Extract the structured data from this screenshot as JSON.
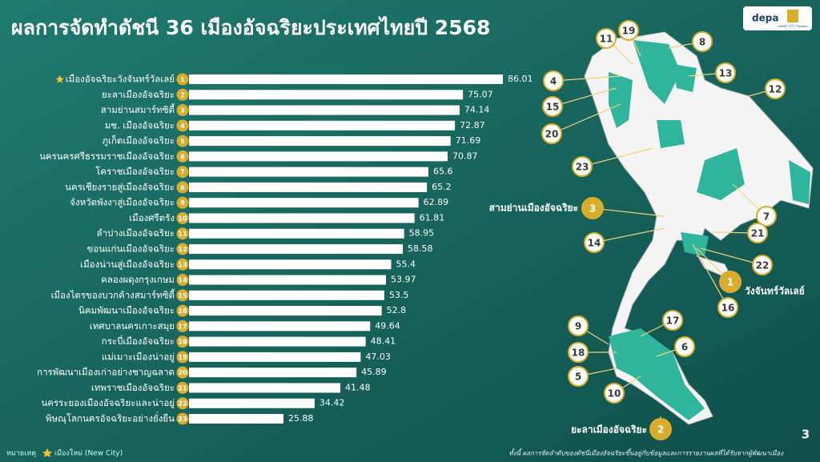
{
  "chart_data": {
    "type": "bar",
    "orientation": "horizontal",
    "title": "ผลการจัดทำดัชนี 36 เมืองอัจฉริยะประเทศไทยปี 2568",
    "categories": [
      "เมืองอัจฉริยะวังจันทร์วัลเลย์",
      "ยะลาเมืองอัจฉริยะ",
      "สามย่านสมาร์ทซิตี้",
      "มช. เมืองอัจฉริยะ",
      "ภูเก็ตเมืองอัจฉริยะ",
      "นครนครศรีธรรมราชเมืองอัจฉริยะ",
      "โคราชเมืองอัจฉริยะ",
      "นครเชียงรายสู่เมืองอัจฉริยะ",
      "จังหวัดพังงาสู่เมืองอัจฉริยะ",
      "เมืองศรีตรัง",
      "ลำปางเมืองอัจฉริยะ",
      "ขอนแก่นเมืองอัจฉริยะ",
      "เมืองน่านสู่เมืองอัจฉริยะ",
      "คลองผดุงกรุงเกษม",
      "เมืองไตรของบวกค้างสมาร์ทซิตี้",
      "นิคมพัฒนาเมืองอัจฉริยะ",
      "เทศบาลนครเกาะสมุย",
      "กระบี่เมืองอัจฉริยะ",
      "แม่เมาะเมืองน่าอยู่",
      "การพัฒนาเมืองเก่าอย่างชาญฉลาด",
      "เทพราชเมืองอัจฉริยะ",
      "นครระยองเมืองอัจฉริยะและน่าอยู่",
      "พิษณุโลกนครอัจฉริยะอย่างยั่งยืน"
    ],
    "ranks": [
      1,
      2,
      3,
      4,
      5,
      6,
      7,
      8,
      9,
      10,
      11,
      12,
      13,
      14,
      15,
      16,
      17,
      18,
      19,
      20,
      21,
      22,
      23
    ],
    "values": [
      86.01,
      75.07,
      74.14,
      72.87,
      71.69,
      70.87,
      65.6,
      65.2,
      62.89,
      61.81,
      58.95,
      58.58,
      55.4,
      53.97,
      53.5,
      52.8,
      49.64,
      48.41,
      47.03,
      45.89,
      41.48,
      34.42,
      25.88
    ],
    "color": "#ffffff",
    "rank_color": "#d9ad2b",
    "new_city_ranks": [
      1
    ],
    "legend": {
      "title": "หมายเหตุ",
      "label": "เมืองใหม่ (New City)"
    },
    "footnote": "ทั้งนี้ ผลการจัดลำดับของดัชนีเมืองอัจฉริยะขึ้นอยู่กับข้อมูลและการรายงานผลที่ได้รับจากผู้พัฒนาเมือง"
  },
  "map": {
    "labels": [
      11,
      19,
      8,
      4,
      13,
      15,
      12,
      20,
      23,
      3,
      7,
      14,
      21,
      22,
      1,
      16,
      9,
      17,
      18,
      6,
      5,
      10,
      2
    ],
    "annotations": [
      "สามย่านเมืองอัจฉริยะ",
      "วังจันทร์วัลเลย์",
      "ยะลาเมืองอัจฉริยะ"
    ]
  },
  "header": {
    "logo": "depa",
    "badge": "SMART CITY Thailand"
  },
  "page_number": "3"
}
